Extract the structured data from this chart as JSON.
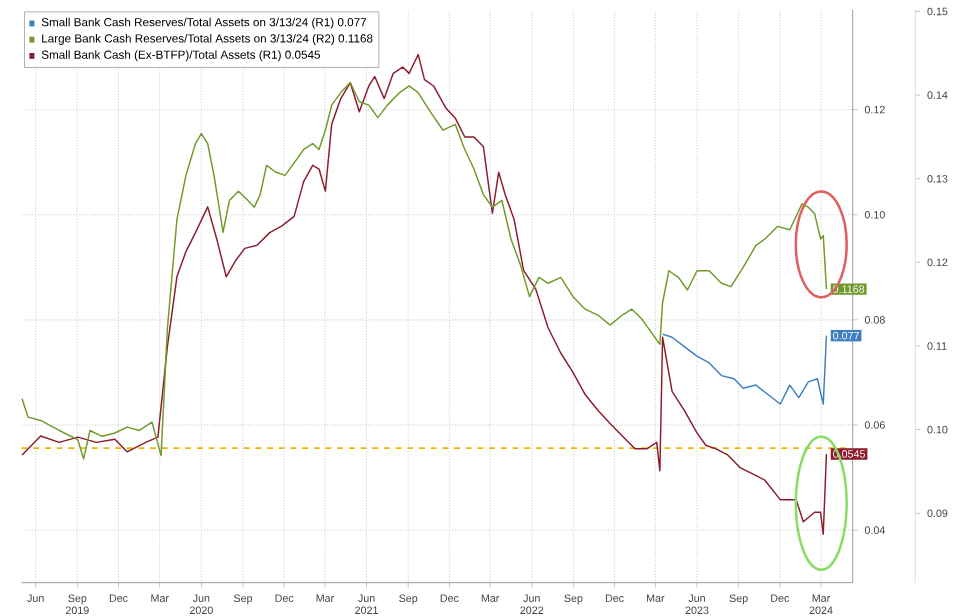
{
  "chart_data": {
    "type": "line",
    "xlim": [
      "2019-05-01",
      "2024-05-10"
    ],
    "xticks": [
      {
        "value": "2019-06-01",
        "label": "Jun"
      },
      {
        "value": "2019-09-01",
        "label": "Sep 2019"
      },
      {
        "value": "2019-12-01",
        "label": "Dec"
      },
      {
        "value": "2020-03-01",
        "label": "Mar"
      },
      {
        "value": "2020-06-01",
        "label": "Jun 2020"
      },
      {
        "value": "2020-09-01",
        "label": "Sep"
      },
      {
        "value": "2020-12-01",
        "label": "Dec"
      },
      {
        "value": "2021-03-01",
        "label": "Mar"
      },
      {
        "value": "2021-06-01",
        "label": "Jun 2021"
      },
      {
        "value": "2021-09-01",
        "label": "Sep"
      },
      {
        "value": "2021-12-01",
        "label": "Dec"
      },
      {
        "value": "2022-03-01",
        "label": "Mar"
      },
      {
        "value": "2022-06-01",
        "label": "Jun 2022"
      },
      {
        "value": "2022-09-01",
        "label": "Sep"
      },
      {
        "value": "2022-12-01",
        "label": "Dec"
      },
      {
        "value": "2023-03-01",
        "label": "Mar"
      },
      {
        "value": "2023-06-01",
        "label": "Jun 2023"
      },
      {
        "value": "2023-09-01",
        "label": "Sep"
      },
      {
        "value": "2023-12-01",
        "label": "Dec"
      },
      {
        "value": "2024-03-01",
        "label": "Mar 2024"
      }
    ],
    "ylim": [
      0.03,
      0.139
    ],
    "yticks": [
      {
        "value": 0.04,
        "label": "0.04"
      },
      {
        "value": 0.06,
        "label": "0.06"
      },
      {
        "value": 0.08,
        "label": "0.08"
      },
      {
        "value": 0.1,
        "label": "0.10"
      },
      {
        "value": 0.12,
        "label": "0.12"
      }
    ],
    "y2lim": [
      0.0817,
      0.1502
    ],
    "y2ticks": [
      {
        "value": 0.09,
        "label": "0.09"
      },
      {
        "value": 0.1,
        "label": "0.10"
      },
      {
        "value": 0.11,
        "label": "0.11"
      },
      {
        "value": 0.12,
        "label": "0.12"
      },
      {
        "value": 0.13,
        "label": "0.13"
      },
      {
        "value": 0.14,
        "label": "0.14"
      },
      {
        "value": 0.15,
        "label": "0.15"
      }
    ],
    "grid": true,
    "legend": "top left",
    "ref_lines": [
      {
        "axis": "y",
        "value": 0.0556,
        "color": "#f0b400",
        "line_style": "dashed"
      }
    ],
    "series": [
      {
        "name": "Small Bank Cash Reserves/Total Assets on 3/13/24 (R1) 0.077",
        "color": "#3f7fbf",
        "axis": "y",
        "x": [
          "2023-03-17",
          "2023-04-07",
          "2023-05-04",
          "2023-06-01",
          "2023-06-28",
          "2023-07-25",
          "2023-08-22",
          "2023-09-11",
          "2023-10-09",
          "2023-11-05",
          "2023-12-02",
          "2023-12-23",
          "2024-01-12",
          "2024-02-02",
          "2024-02-22",
          "2024-03-06",
          "2024-03-13"
        ],
        "values": [
          0.0773,
          0.0767,
          0.0749,
          0.0731,
          0.0718,
          0.0694,
          0.0688,
          0.067,
          0.0676,
          0.0658,
          0.064,
          0.0676,
          0.0652,
          0.0682,
          0.0688,
          0.064,
          0.077
        ],
        "value_labels": [
          null,
          null,
          null,
          null,
          null,
          null,
          null,
          null,
          null,
          null,
          null,
          null,
          null,
          null,
          null,
          null,
          "0.077"
        ]
      },
      {
        "name": "Large Bank Cash Reserves/Total Assets on 3/13/24 (R2) 0.1168",
        "color": "#6f9a2a",
        "axis": "y2",
        "x": [
          "2019-05-02",
          "2019-05-15",
          "2019-06-12",
          "2019-07-23",
          "2019-09-02",
          "2019-09-15",
          "2019-09-29",
          "2019-10-26",
          "2019-11-23",
          "2019-12-20",
          "2020-01-16",
          "2020-02-13",
          "2020-03-04",
          "2020-03-18",
          "2020-04-08",
          "2020-04-28",
          "2020-05-19",
          "2020-06-01",
          "2020-06-15",
          "2020-06-29",
          "2020-07-19",
          "2020-08-02",
          "2020-08-22",
          "2020-09-12",
          "2020-09-26",
          "2020-10-09",
          "2020-10-23",
          "2020-11-12",
          "2020-12-03",
          "2020-12-23",
          "2021-01-13",
          "2021-02-02",
          "2021-02-16",
          "2021-03-02",
          "2021-03-16",
          "2021-04-05",
          "2021-04-26",
          "2021-05-16",
          "2021-06-06",
          "2021-06-26",
          "2021-07-17",
          "2021-08-13",
          "2021-09-03",
          "2021-09-23",
          "2021-10-20",
          "2021-11-17",
          "2021-12-14",
          "2022-01-04",
          "2022-01-24",
          "2022-02-14",
          "2022-03-06",
          "2022-03-27",
          "2022-04-16",
          "2022-05-07",
          "2022-05-27",
          "2022-06-17",
          "2022-07-07",
          "2022-08-04",
          "2022-08-31",
          "2022-09-27",
          "2022-10-25",
          "2022-11-21",
          "2022-12-18",
          "2023-01-08",
          "2023-01-29",
          "2023-03-11",
          "2023-03-17",
          "2023-03-31",
          "2023-04-21",
          "2023-05-11",
          "2023-06-01",
          "2023-06-28",
          "2023-07-25",
          "2023-08-15",
          "2023-09-11",
          "2023-10-09",
          "2023-10-29",
          "2023-11-26",
          "2023-12-23",
          "2024-01-19",
          "2024-02-02",
          "2024-02-16",
          "2024-02-29",
          "2024-03-06",
          "2024-03-13"
        ],
        "values": [
          0.1037,
          0.1015,
          0.1011,
          0.0999,
          0.0988,
          0.0965,
          0.0999,
          0.0992,
          0.0996,
          0.1003,
          0.0999,
          0.1009,
          0.0969,
          0.1121,
          0.1251,
          0.1304,
          0.1342,
          0.1354,
          0.1342,
          0.1304,
          0.1236,
          0.1274,
          0.1285,
          0.1274,
          0.1266,
          0.1281,
          0.1316,
          0.1308,
          0.1304,
          0.1319,
          0.1335,
          0.1342,
          0.1335,
          0.1358,
          0.1388,
          0.1403,
          0.1415,
          0.1392,
          0.1388,
          0.1373,
          0.1388,
          0.1403,
          0.1411,
          0.1403,
          0.138,
          0.1358,
          0.1365,
          0.1335,
          0.1312,
          0.1281,
          0.1266,
          0.1274,
          0.1228,
          0.1197,
          0.1159,
          0.1182,
          0.1175,
          0.1182,
          0.1159,
          0.1144,
          0.1137,
          0.1125,
          0.1137,
          0.1144,
          0.1133,
          0.1102,
          0.1152,
          0.119,
          0.1182,
          0.1167,
          0.119,
          0.119,
          0.1175,
          0.1171,
          0.1194,
          0.122,
          0.1228,
          0.1243,
          0.1239,
          0.127,
          0.1266,
          0.1258,
          0.1228,
          0.1232,
          0.1168
        ],
        "value_labels": [
          null,
          null,
          null,
          null,
          null,
          null,
          null,
          null,
          null,
          null,
          null,
          null,
          null,
          null,
          null,
          null,
          null,
          null,
          null,
          null,
          null,
          null,
          null,
          null,
          null,
          null,
          null,
          null,
          null,
          null,
          null,
          null,
          null,
          null,
          null,
          null,
          null,
          null,
          null,
          null,
          null,
          null,
          null,
          null,
          null,
          null,
          null,
          null,
          null,
          null,
          null,
          null,
          null,
          null,
          null,
          null,
          null,
          null,
          null,
          null,
          null,
          null,
          null,
          null,
          null,
          null,
          null,
          null,
          null,
          null,
          null,
          null,
          null,
          null,
          null,
          null,
          null,
          null,
          null,
          null,
          null,
          null,
          null,
          null,
          "0.1168"
        ]
      },
      {
        "name": "Small Bank Cash (Ex-BTFP)/Total Assets (R1) 0.0545",
        "color": "#8c1c2c",
        "axis": "y",
        "x": [
          "2019-05-02",
          "2019-06-12",
          "2019-07-23",
          "2019-09-02",
          "2019-10-13",
          "2019-11-23",
          "2019-12-20",
          "2020-01-30",
          "2020-02-26",
          "2020-03-18",
          "2020-04-08",
          "2020-04-28",
          "2020-05-19",
          "2020-06-15",
          "2020-07-05",
          "2020-07-26",
          "2020-08-15",
          "2020-09-05",
          "2020-10-02",
          "2020-10-30",
          "2020-11-26",
          "2020-12-23",
          "2021-01-13",
          "2021-02-02",
          "2021-02-16",
          "2021-03-02",
          "2021-03-16",
          "2021-04-05",
          "2021-04-26",
          "2021-05-16",
          "2021-06-06",
          "2021-06-19",
          "2021-07-10",
          "2021-07-30",
          "2021-08-20",
          "2021-09-03",
          "2021-09-23",
          "2021-10-07",
          "2021-10-27",
          "2021-11-24",
          "2021-12-14",
          "2022-01-04",
          "2022-01-24",
          "2022-02-14",
          "2022-03-06",
          "2022-03-20",
          "2022-04-03",
          "2022-04-23",
          "2022-05-14",
          "2022-06-10",
          "2022-07-07",
          "2022-08-04",
          "2022-08-31",
          "2022-09-27",
          "2022-10-25",
          "2022-11-21",
          "2022-12-18",
          "2023-01-15",
          "2023-02-11",
          "2023-03-04",
          "2023-03-11",
          "2023-03-17",
          "2023-04-07",
          "2023-05-04",
          "2023-06-01",
          "2023-06-21",
          "2023-07-12",
          "2023-08-08",
          "2023-09-04",
          "2023-10-02",
          "2023-10-29",
          "2023-12-02",
          "2024-01-06",
          "2024-01-22",
          "2024-02-16",
          "2024-02-29",
          "2024-03-06",
          "2024-03-13"
        ],
        "values": [
          0.0543,
          0.0579,
          0.0567,
          0.0577,
          0.0567,
          0.0573,
          0.0549,
          0.0567,
          0.0577,
          0.0749,
          0.0882,
          0.093,
          0.0966,
          0.1015,
          0.0954,
          0.0882,
          0.0912,
          0.0936,
          0.0942,
          0.0966,
          0.0979,
          0.0997,
          0.1063,
          0.1094,
          0.1087,
          0.1045,
          0.1172,
          0.1221,
          0.1251,
          0.1196,
          0.1245,
          0.1263,
          0.1221,
          0.1269,
          0.1281,
          0.1269,
          0.1305,
          0.1257,
          0.1245,
          0.1202,
          0.1184,
          0.1148,
          0.1148,
          0.113,
          0.1003,
          0.1081,
          0.1039,
          0.0991,
          0.0894,
          0.0858,
          0.0785,
          0.0737,
          0.07,
          0.0658,
          0.0628,
          0.0603,
          0.0579,
          0.0555,
          0.0555,
          0.0567,
          0.0513,
          0.0767,
          0.0664,
          0.0628,
          0.0585,
          0.0561,
          0.0555,
          0.0543,
          0.0519,
          0.0507,
          0.0495,
          0.0458,
          0.0458,
          0.0416,
          0.0434,
          0.0434,
          0.0392,
          0.0545
        ],
        "value_labels": [
          null,
          null,
          null,
          null,
          null,
          null,
          null,
          null,
          null,
          null,
          null,
          null,
          null,
          null,
          null,
          null,
          null,
          null,
          null,
          null,
          null,
          null,
          null,
          null,
          null,
          null,
          null,
          null,
          null,
          null,
          null,
          null,
          null,
          null,
          null,
          null,
          null,
          null,
          null,
          null,
          null,
          null,
          null,
          null,
          null,
          null,
          null,
          null,
          null,
          null,
          null,
          null,
          null,
          null,
          null,
          null,
          null,
          null,
          null,
          null,
          null,
          null,
          null,
          null,
          null,
          null,
          null,
          null,
          null,
          null,
          null,
          null,
          null,
          null,
          null,
          null,
          null,
          "0.0545"
        ]
      }
    ]
  }
}
